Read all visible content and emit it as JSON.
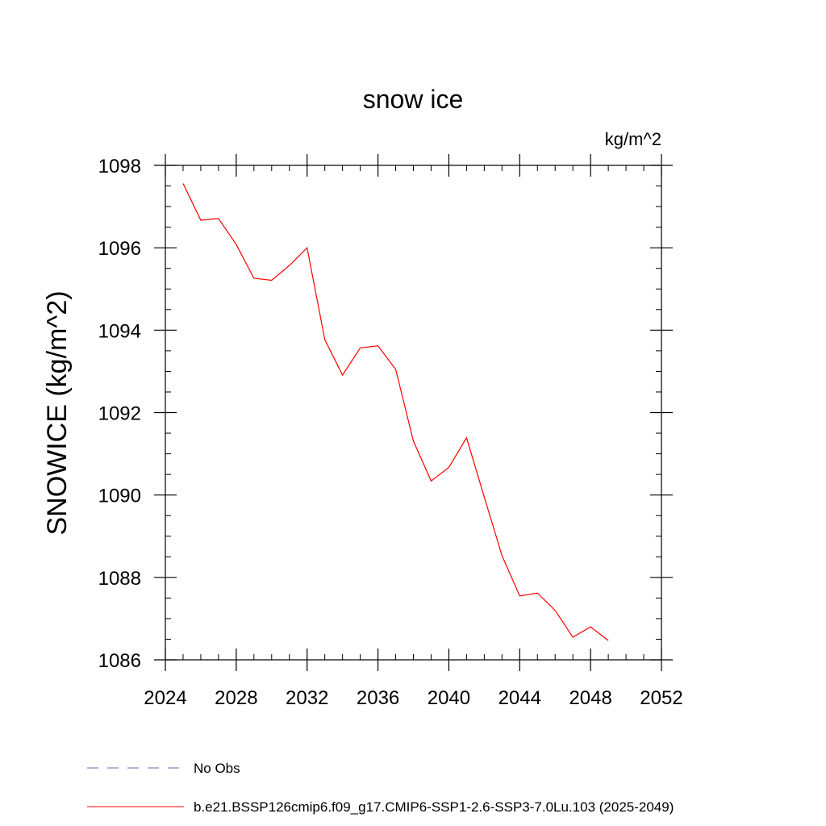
{
  "chart_data": {
    "type": "line",
    "title": "snow ice",
    "units_label": "kg/m^2",
    "ylabel": "SNOWICE  (kg/m^2)",
    "xlabel": "",
    "xlim": [
      2024,
      2052
    ],
    "ylim": [
      1086,
      1098
    ],
    "x_ticks": [
      2024,
      2028,
      2032,
      2036,
      2040,
      2044,
      2048,
      2052
    ],
    "x_tick_labels": [
      "2024",
      "2028",
      "2032",
      "2036",
      "2040",
      "2044",
      "2048",
      "2052"
    ],
    "x_minor_step": 1,
    "y_ticks": [
      1086,
      1088,
      1090,
      1092,
      1094,
      1096,
      1098
    ],
    "y_tick_labels": [
      "1086",
      "1088",
      "1090",
      "1092",
      "1094",
      "1096",
      "1098"
    ],
    "y_minor_step": 0.5,
    "grid": false,
    "legend_position": "bottom",
    "series": [
      {
        "name": "b.e21.BSSP126cmip6.f09_g17.CMIP6-SSP1-2.6-SSP3-7.0Lu.103 (2025-2049)",
        "color": "#ff0000",
        "style": "solid",
        "x": [
          2025,
          2026,
          2027,
          2028,
          2029,
          2030,
          2031,
          2032,
          2033,
          2034,
          2035,
          2036,
          2037,
          2038,
          2039,
          2040,
          2041,
          2042,
          2043,
          2044,
          2045,
          2046,
          2047,
          2048,
          2049
        ],
        "y": [
          1097.56,
          1096.67,
          1096.71,
          1096.08,
          1095.26,
          1095.21,
          1095.57,
          1096.0,
          1093.77,
          1092.91,
          1093.57,
          1093.62,
          1093.05,
          1091.31,
          1090.34,
          1090.67,
          1091.39,
          1089.95,
          1088.53,
          1087.55,
          1087.62,
          1087.2,
          1086.55,
          1086.8,
          1086.47
        ]
      }
    ],
    "legend": [
      {
        "label": "No Obs",
        "color": "#7060b0",
        "style": "dashed"
      },
      {
        "label": "b.e21.BSSP126cmip6.f09_g17.CMIP6-SSP1-2.6-SSP3-7.0Lu.103 (2025-2049)",
        "color": "#ff0000",
        "style": "solid"
      }
    ]
  }
}
